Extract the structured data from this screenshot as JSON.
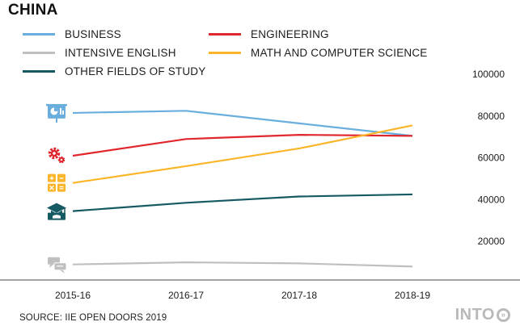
{
  "title": "CHINA",
  "source": "SOURCE: IIE OPEN DOORS 2019",
  "brand": {
    "text": "INTO",
    "symbol": "»"
  },
  "chart_data": {
    "type": "line",
    "title": "CHINA",
    "xlabel": "",
    "ylabel": "",
    "categories": [
      "2015-16",
      "2016-17",
      "2017-18",
      "2018-19"
    ],
    "ylim": [
      0,
      100000
    ],
    "yticks": [
      20000,
      40000,
      60000,
      80000,
      100000
    ],
    "ytick_labels": [
      "20000",
      "40000",
      "60000",
      "80000",
      "100000"
    ],
    "y_axis_position": "right",
    "grid": false,
    "legend_position": "top",
    "series": [
      {
        "name": "BUSINESS",
        "color": "#6aaede",
        "icon": "presentation-chart-icon",
        "values": [
          81500,
          82500,
          76500,
          70500
        ]
      },
      {
        "name": "ENGINEERING",
        "color": "#e0272e",
        "icon": "gears-icon",
        "values": [
          61000,
          69000,
          71000,
          70500
        ]
      },
      {
        "name": "INTENSIVE ENGLISH",
        "color": "#bfbfbf",
        "icon": "chat-bubbles-icon",
        "values": [
          9000,
          10000,
          9500,
          8000
        ]
      },
      {
        "name": "MATH AND COMPUTER SCIENCE",
        "color": "#fbb52a",
        "icon": "calculator-icon",
        "values": [
          48000,
          56000,
          64500,
          75500
        ]
      },
      {
        "name": "OTHER FIELDS OF STUDY",
        "color": "#155a63",
        "icon": "graduation-cap-icon",
        "values": [
          34500,
          38500,
          41500,
          42500
        ]
      }
    ]
  }
}
